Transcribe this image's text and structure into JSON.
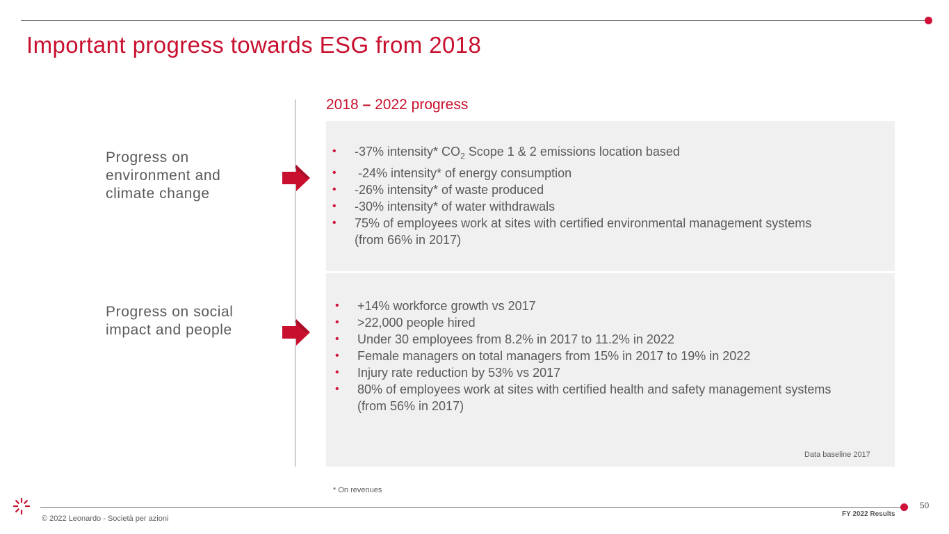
{
  "header": {
    "title": "Important progress towards ESG from 2018"
  },
  "subtitle": {
    "start": "2018",
    "dash": "–",
    "end": "2022 progress"
  },
  "sections": [
    {
      "label": "Progress on environment and climate change",
      "bullets": [
        {
          "pre": "-37% intensity* CO",
          "sub": "2",
          "post": " Scope 1 & 2 emissions location based"
        },
        {
          "text": " -24% intensity* of energy consumption"
        },
        {
          "text": "-26% intensity* of waste produced"
        },
        {
          "text": "-30% intensity* of water withdrawals"
        },
        {
          "text": "75% of employees work at sites with certified environmental management systems (from 66% in 2017)"
        }
      ]
    },
    {
      "label": "Progress on social impact and people",
      "bullets": [
        {
          "text": "+14% workforce growth vs 2017"
        },
        {
          "text": ">22,000 people hired"
        },
        {
          "text": "Under 30 employees from 8.2% in 2017 to 11.2% in 2022"
        },
        {
          "text": "Female managers on total managers from 15% in 2017 to 19% in 2022"
        },
        {
          "text": "Injury rate reduction by 53% vs 2017"
        },
        {
          "text": "80% of employees work at sites with certified health and safety management systems (from 56% in 2017)"
        }
      ]
    }
  ],
  "bullet_char": "•",
  "baseline_note": "Data baseline 2017",
  "footnote": "* On revenues",
  "footer": {
    "page_number": "50",
    "results_label": "FY 2022 Results",
    "copyright": "© 2022 Leonardo - Società per azioni"
  },
  "colors": {
    "accent": "#c8102e",
    "dot": "#d0103a",
    "text": "#5a5a5a",
    "panel": "#f0f0f0"
  },
  "icons": {
    "arrow": "right-arrow-icon",
    "logo": "leonardo-logo"
  }
}
